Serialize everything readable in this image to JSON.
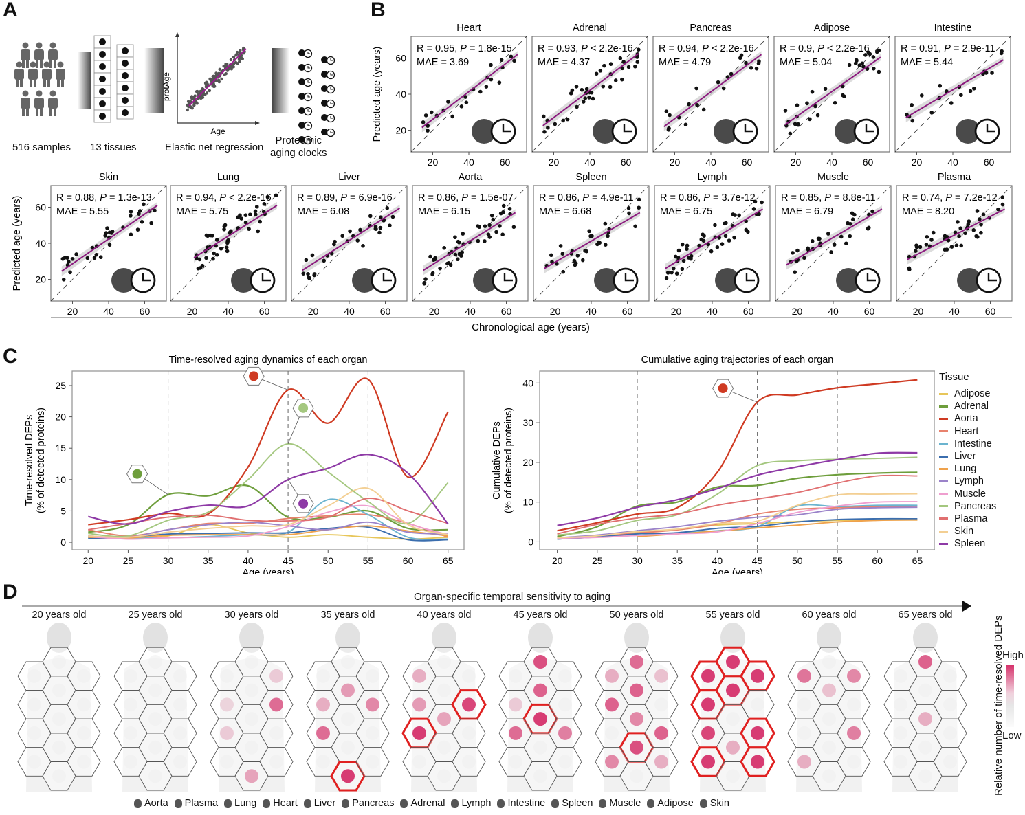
{
  "panels": {
    "A": "A",
    "B": "B",
    "C": "C",
    "D": "D"
  },
  "panelA": {
    "steps": [
      "516 samples",
      "13 tissues",
      "Elastic net regression",
      "Proteomic\naging clocks"
    ],
    "regression": {
      "xlabel": "Age",
      "ylabel": "protAge"
    }
  },
  "colors": {
    "Adipose": "#e7c65a",
    "Adrenal": "#6e9e3c",
    "Aorta": "#cf3a22",
    "Heart": "#e8826e",
    "Intestine": "#6bb4cf",
    "Liver": "#3b6eae",
    "Lung": "#efa24c",
    "Lymph": "#9b83c9",
    "Muscle": "#ef9fcf",
    "Pancreas": "#a4c77f",
    "Plasma": "#e06f70",
    "Skin": "#f3cf93",
    "Spleen": "#8e3aa6",
    "regression_line": "#8b1a7e",
    "highlight": "#e02020",
    "heat_high": "#d6336c"
  },
  "chart_data": [
    {
      "type": "scatter",
      "id": "panelB",
      "xlabel": "Chronological age (years)",
      "ylabel": "Predicted age (years)",
      "xticks": [
        20,
        40,
        60
      ],
      "yticks": [
        20,
        40,
        60
      ],
      "xlim": [
        8,
        72
      ],
      "ylim": [
        8,
        72
      ],
      "panels": [
        {
          "tissue": "Heart",
          "R": "0.95",
          "P_op": "=",
          "P": "1.8e-15",
          "MAE": "3.69",
          "fit": [
            [
              14,
              21.5
            ],
            [
              67,
              62
            ]
          ]
        },
        {
          "tissue": "Adrenal",
          "R": "0.93",
          "P_op": "<",
          "P": "2.2e-16",
          "MAE": "4.37",
          "fit": [
            [
              14,
              22.5
            ],
            [
              67,
              62.5
            ]
          ]
        },
        {
          "tissue": "Pancreas",
          "R": "0.94",
          "P_op": "<",
          "P": "2.2e-16",
          "MAE": "4.79",
          "fit": [
            [
              14,
              22
            ],
            [
              68,
              62
            ]
          ]
        },
        {
          "tissue": "Adipose",
          "R": "0.9",
          "P_op": "<",
          "P": "2.2e-16",
          "MAE": "5.04",
          "fit": [
            [
              14,
              23
            ],
            [
              67,
              60.5
            ]
          ]
        },
        {
          "tissue": "Intestine",
          "R": "0.91",
          "P_op": "=",
          "P": "2.9e-11",
          "MAE": "5.44",
          "fit": [
            [
              14,
              27
            ],
            [
              68,
              59
            ]
          ]
        },
        {
          "tissue": "Skin",
          "R": "0.88",
          "P_op": "=",
          "P": "1.3e-13",
          "MAE": "5.55",
          "fit": [
            [
              14,
              24.5
            ],
            [
              67,
              61
            ]
          ]
        },
        {
          "tissue": "Lung",
          "R": "0.94",
          "P_op": "<",
          "P": "2.2e-16",
          "MAE": "5.75",
          "fit": [
            [
              21,
              32
            ],
            [
              67,
              61
            ]
          ]
        },
        {
          "tissue": "Liver",
          "R": "0.89",
          "P_op": "=",
          "P": "6.9e-16",
          "MAE": "6.08",
          "fit": [
            [
              14,
              25
            ],
            [
              68,
              59.5
            ]
          ]
        },
        {
          "tissue": "Aorta",
          "R": "0.86",
          "P_op": "=",
          "P": "1.5e-07",
          "MAE": "6.15",
          "fit": [
            [
              14,
              25
            ],
            [
              65,
              57
            ]
          ]
        },
        {
          "tissue": "Spleen",
          "R": "0.86",
          "P_op": "=",
          "P": "4.9e-11",
          "MAE": "6.68",
          "fit": [
            [
              14,
              26
            ],
            [
              67,
              57
            ]
          ]
        },
        {
          "tissue": "Lymph",
          "R": "0.86",
          "P_op": "=",
          "P": "3.7e-12",
          "MAE": "6.75",
          "fit": [
            [
              14,
              26
            ],
            [
              68,
              59
            ]
          ]
        },
        {
          "tissue": "Muscle",
          "R": "0.85",
          "P_op": "=",
          "P": "8.8e-11",
          "MAE": "6.79",
          "fit": [
            [
              14,
              28
            ],
            [
              67,
              59
            ]
          ]
        },
        {
          "tissue": "Plasma",
          "R": "0.74",
          "P_op": "=",
          "P": "7.2e-12",
          "MAE": "8.20",
          "fit": [
            [
              14,
              31
            ],
            [
              68,
              59
            ]
          ]
        }
      ]
    },
    {
      "type": "line",
      "id": "timeResolved",
      "title": "Time-resolved aging dynamics of each organ",
      "xlabel": "Age (years)",
      "ylabel": "Time-resolved DEPs\n(% of detected proteins)",
      "x": [
        20,
        25,
        30,
        35,
        40,
        45,
        50,
        55,
        60,
        65
      ],
      "xlim": [
        18,
        67
      ],
      "ylim": [
        -1.2,
        27.3
      ],
      "yticks": [
        0,
        5,
        10,
        15,
        20,
        25
      ],
      "vlines": [
        30,
        45,
        55
      ],
      "grid": false,
      "series": [
        {
          "name": "Adipose",
          "values": [
            0.9,
            0.6,
            1.0,
            2.8,
            1.5,
            0.8,
            1.2,
            0.8,
            0.5,
            0.8
          ]
        },
        {
          "name": "Adrenal",
          "values": [
            1.6,
            2.8,
            7.6,
            7.4,
            9.0,
            4.0,
            4.0,
            5.0,
            2.2,
            2.0
          ]
        },
        {
          "name": "Aorta",
          "values": [
            2.8,
            3.6,
            4.6,
            4.5,
            12.0,
            24.3,
            19.0,
            26.0,
            10.4,
            20.8
          ]
        },
        {
          "name": "Heart",
          "values": [
            2.0,
            1.0,
            2.0,
            3.0,
            3.0,
            3.8,
            4.2,
            4.4,
            3.0,
            0.8
          ]
        },
        {
          "name": "Intestine",
          "values": [
            0.7,
            0.7,
            0.7,
            0.9,
            1.2,
            1.6,
            6.8,
            4.4,
            0.8,
            0.5
          ]
        },
        {
          "name": "Liver",
          "values": [
            0.6,
            0.8,
            1.3,
            1.4,
            1.5,
            1.5,
            2.2,
            2.4,
            0.4,
            0.4
          ]
        },
        {
          "name": "Lung",
          "values": [
            0.8,
            0.7,
            1.1,
            1.2,
            1.2,
            1.2,
            2.0,
            2.6,
            1.8,
            1.0
          ]
        },
        {
          "name": "Lymph",
          "values": [
            1.0,
            0.8,
            2.0,
            2.8,
            3.2,
            2.6,
            2.0,
            3.2,
            1.6,
            1.3
          ]
        },
        {
          "name": "Muscle",
          "values": [
            0.9,
            0.5,
            0.7,
            0.8,
            1.0,
            2.5,
            4.8,
            5.8,
            3.0,
            1.2
          ]
        },
        {
          "name": "Pancreas",
          "values": [
            1.4,
            1.0,
            3.5,
            4.8,
            10.0,
            15.7,
            11.2,
            6.5,
            3.0,
            9.5
          ]
        },
        {
          "name": "Plasma",
          "values": [
            2.0,
            3.0,
            4.0,
            4.3,
            3.5,
            3.4,
            4.0,
            7.0,
            5.0,
            3.0
          ]
        },
        {
          "name": "Skin",
          "values": [
            1.0,
            0.8,
            1.6,
            2.2,
            2.6,
            2.8,
            5.8,
            8.6,
            2.8,
            1.2
          ]
        },
        {
          "name": "Spleen",
          "values": [
            4.1,
            2.9,
            4.9,
            5.9,
            5.8,
            10.0,
            11.8,
            14.0,
            11.0,
            2.9
          ]
        }
      ],
      "annotations": [
        {
          "tissue": "Adrenal",
          "x": 30
        },
        {
          "tissue": "Aorta",
          "x": 45
        },
        {
          "tissue": "Pancreas",
          "x": 45
        },
        {
          "tissue": "Spleen",
          "x": 45
        }
      ]
    },
    {
      "type": "line",
      "id": "cumulative",
      "title": "Cumulative aging trajectories of each organ",
      "xlabel": "Age (years)",
      "ylabel": "Cumulative DEPs\n(% of detected proteins)",
      "x": [
        20,
        25,
        30,
        35,
        40,
        45,
        50,
        55,
        60,
        65
      ],
      "xlim": [
        17.8,
        67.2
      ],
      "ylim": [
        -2,
        43
      ],
      "yticks": [
        0,
        10,
        20,
        30,
        40
      ],
      "vlines": [
        30,
        45,
        55
      ],
      "grid": false,
      "legend": {
        "title": "Tissue",
        "position": "right"
      },
      "series": [
        {
          "name": "Adipose",
          "values": [
            1.0,
            1.4,
            2.3,
            3.0,
            4.2,
            4.6,
            5.1,
            5.4,
            5.5,
            5.5
          ]
        },
        {
          "name": "Adrenal",
          "values": [
            1.3,
            3.8,
            9.0,
            10.0,
            13.8,
            14.2,
            16.0,
            16.9,
            17.3,
            17.5
          ]
        },
        {
          "name": "Aorta",
          "values": [
            2.8,
            4.8,
            7.0,
            8.6,
            17.5,
            35.2,
            37.0,
            38.8,
            39.8,
            40.8
          ]
        },
        {
          "name": "Heart",
          "values": [
            1.0,
            1.5,
            2.2,
            3.0,
            4.5,
            7.0,
            8.2,
            8.6,
            8.9,
            9.0
          ]
        },
        {
          "name": "Intestine",
          "values": [
            0.7,
            1.2,
            1.6,
            2.2,
            2.8,
            3.8,
            9.0,
            8.9,
            9.2,
            9.2
          ]
        },
        {
          "name": "Liver",
          "values": [
            0.7,
            1.2,
            2.0,
            2.3,
            3.4,
            3.9,
            5.0,
            5.6,
            5.8,
            5.8
          ]
        },
        {
          "name": "Lung",
          "values": [
            null,
            null,
            1.3,
            2.0,
            2.7,
            3.5,
            4.2,
            5.0,
            5.4,
            5.5
          ]
        },
        {
          "name": "Lymph",
          "values": [
            1.0,
            1.7,
            2.8,
            3.8,
            5.2,
            6.2,
            6.8,
            8.2,
            8.6,
            8.7
          ]
        },
        {
          "name": "Muscle",
          "values": [
            0.9,
            1.1,
            1.6,
            2.0,
            2.5,
            4.6,
            7.4,
            9.0,
            10.0,
            10.1
          ]
        },
        {
          "name": "Pancreas",
          "values": [
            1.7,
            2.8,
            5.4,
            6.8,
            12.0,
            19.2,
            20.4,
            20.8,
            21.0,
            21.3
          ]
        },
        {
          "name": "Plasma",
          "values": [
            2.0,
            4.4,
            6.0,
            7.0,
            9.2,
            10.8,
            12.4,
            14.8,
            16.6,
            16.6
          ]
        },
        {
          "name": "Skin",
          "values": [
            1.0,
            1.5,
            2.6,
            3.2,
            4.6,
            5.2,
            9.2,
            11.8,
            12.0,
            12.1
          ]
        },
        {
          "name": "Spleen",
          "values": [
            4.1,
            6.0,
            8.7,
            10.6,
            13.4,
            16.8,
            18.9,
            20.7,
            22.3,
            22.4
          ]
        }
      ],
      "annotations": [
        {
          "tissue": "Aorta",
          "x": 45
        }
      ]
    },
    {
      "type": "heatmap",
      "id": "panelD",
      "title": "Organ-specific temporal sensitivity to aging",
      "colorbar": {
        "label": "Relative number of time-resolved DEPs",
        "high": "High",
        "low": "Low"
      },
      "ages": [
        "20 years old",
        "25 years old",
        "30 years old",
        "35 years old",
        "40 years old",
        "45 years old",
        "50 years old",
        "55 years old",
        "60 years old",
        "65 years old"
      ],
      "organs": [
        "Aorta",
        "Plasma",
        "Lung",
        "Heart",
        "Liver",
        "Pancreas",
        "Adrenal",
        "Lymph",
        "Intestine",
        "Spleen",
        "Muscle",
        "Adipose",
        "Skin"
      ],
      "intensity": [
        [
          0,
          0,
          0,
          0,
          0,
          0,
          0,
          0,
          0,
          0,
          0,
          0,
          0
        ],
        [
          0,
          0,
          0,
          0,
          0,
          0,
          0,
          0,
          0,
          0,
          0,
          0,
          0
        ],
        [
          0,
          0.2,
          0,
          0,
          0.15,
          0,
          0.7,
          0.2,
          0,
          0,
          0,
          0.4,
          0
        ],
        [
          0,
          0,
          0,
          0.45,
          0.35,
          0,
          0.55,
          0.7,
          0,
          0,
          0,
          0.95,
          0
        ],
        [
          0,
          0,
          0.35,
          0,
          0.45,
          0.4,
          0.9,
          0.95,
          0,
          0,
          0,
          0,
          0
        ],
        [
          0.85,
          0,
          0,
          0.75,
          0.2,
          0.95,
          0,
          0.7,
          0,
          0.6,
          0,
          0,
          0
        ],
        [
          0.7,
          0.25,
          0.35,
          0.75,
          0.75,
          0.55,
          0,
          0,
          0.85,
          0.75,
          0.55,
          0,
          0.35
        ],
        [
          0.95,
          0.95,
          0.95,
          0.95,
          0.95,
          0,
          0,
          0.9,
          0.35,
          0.95,
          0.95,
          0,
          0.95
        ],
        [
          0,
          0.55,
          0.65,
          0.25,
          0,
          0,
          0,
          0,
          0,
          0.6,
          0.35,
          0,
          0
        ],
        [
          0.75,
          0,
          0,
          0,
          0,
          0.35,
          0,
          0,
          0,
          0,
          0,
          0,
          0
        ]
      ],
      "highlighted": [
        [],
        [],
        [],
        [
          "Adipose"
        ],
        [
          "Adrenal",
          "Lymph"
        ],
        [
          "Pancreas"
        ],
        [
          "Intestine"
        ],
        [
          "Aorta",
          "Lung",
          "Plasma",
          "Heart",
          "Liver",
          "Spleen",
          "Muscle",
          "Skin"
        ],
        [],
        []
      ]
    }
  ],
  "organ_legend": [
    "Aorta",
    "Plasma",
    "Lung",
    "Heart",
    "Liver",
    "Pancreas",
    "Adrenal",
    "Lymph",
    "Intestine",
    "Spleen",
    "Muscle",
    "Adipose",
    "Skin"
  ]
}
